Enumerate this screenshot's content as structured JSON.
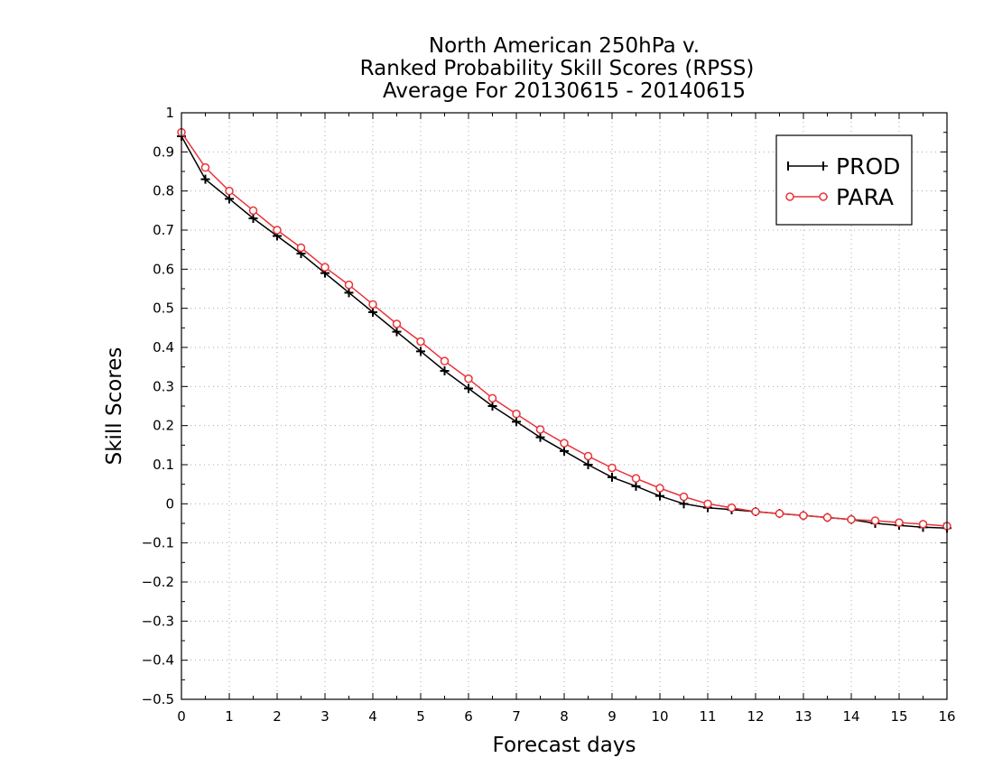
{
  "chart_data": {
    "type": "line",
    "title_lines": [
      "North American 250hPa v.",
      "Ranked Probability Skill Scores (RPSS)",
      "Average For 20130615 - 20140615"
    ],
    "xlabel": "Forecast days",
    "ylabel": "Skill Scores",
    "xlim": [
      0,
      16
    ],
    "ylim": [
      -0.5,
      1
    ],
    "x_ticks": [
      0,
      1,
      2,
      3,
      4,
      5,
      6,
      7,
      8,
      9,
      10,
      11,
      12,
      13,
      14,
      15,
      16
    ],
    "y_ticks": [
      -0.5,
      -0.4,
      -0.3,
      -0.2,
      -0.1,
      0,
      0.1,
      0.2,
      0.3,
      0.4,
      0.5,
      0.6,
      0.7,
      0.8,
      0.9,
      1
    ],
    "grid": true,
    "legend_position": "top-right",
    "x": [
      0,
      0.5,
      1,
      1.5,
      2,
      2.5,
      3,
      3.5,
      4,
      4.5,
      5,
      5.5,
      6,
      6.5,
      7,
      7.5,
      8,
      8.5,
      9,
      9.5,
      10,
      10.5,
      11,
      11.5,
      12,
      12.5,
      13,
      13.5,
      14,
      14.5,
      15,
      15.5,
      16
    ],
    "series": [
      {
        "name": "PROD",
        "color": "#000000",
        "marker": "plus",
        "values": [
          0.94,
          0.83,
          0.78,
          0.73,
          0.685,
          0.64,
          0.59,
          0.54,
          0.49,
          0.44,
          0.39,
          0.34,
          0.295,
          0.25,
          0.21,
          0.17,
          0.135,
          0.1,
          0.068,
          0.045,
          0.02,
          0.0,
          -0.01,
          -0.015,
          -0.02,
          -0.025,
          -0.03,
          -0.035,
          -0.04,
          -0.05,
          -0.055,
          -0.06,
          -0.062
        ]
      },
      {
        "name": "PARA",
        "color": "#e8343a",
        "marker": "circle",
        "values": [
          0.95,
          0.86,
          0.8,
          0.75,
          0.7,
          0.655,
          0.605,
          0.56,
          0.51,
          0.46,
          0.415,
          0.365,
          0.32,
          0.27,
          0.23,
          0.19,
          0.155,
          0.122,
          0.092,
          0.065,
          0.04,
          0.018,
          0.0,
          -0.01,
          -0.02,
          -0.025,
          -0.03,
          -0.035,
          -0.04,
          -0.043,
          -0.048,
          -0.052,
          -0.057
        ]
      }
    ]
  }
}
